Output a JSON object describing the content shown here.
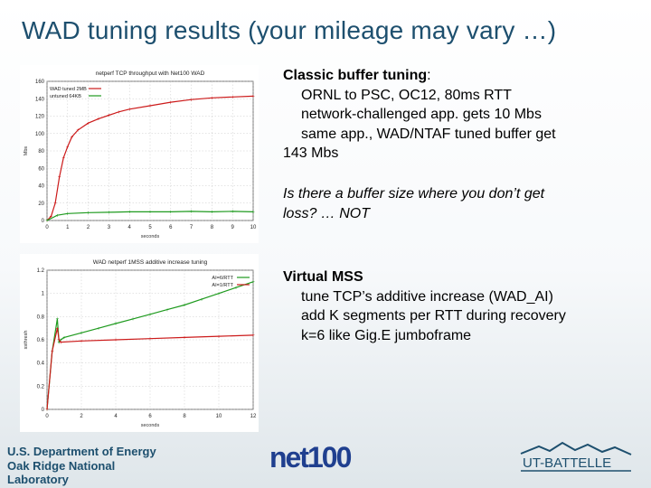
{
  "title": "WAD tuning results  (your mileage may vary …)",
  "colors": {
    "title": "#1d4f6e",
    "red_series": "#cc1a1a",
    "green_series": "#1e9a1e"
  },
  "text": {
    "block1": {
      "heading": "Classic buffer tuning",
      "heading_suffix": ":",
      "lines": [
        "ORNL to PSC,  OC12, 80ms RTT",
        "network-challenged app. gets 10 Mbs",
        "same app., WAD/NTAF tuned buffer get"
      ],
      "tail": "143 Mbs"
    },
    "block2": {
      "line1": " Is there a buffer size where you don’t get",
      "line2": "loss?  … NOT"
    },
    "block3": {
      "heading": "Virtual MSS",
      "lines": [
        "tune TCP’s additive increase  (WAD_AI)",
        "add K segments per RTT during recovery",
        "k=6 like Gig.E jumboframe"
      ]
    }
  },
  "footer": {
    "doe_lines": [
      "U.S. Department of Energy",
      "Oak Ridge National",
      "Laboratory"
    ],
    "net100_logo": "net100",
    "ut_logo": "UT-BATTELLE"
  },
  "chart_data": [
    {
      "type": "line",
      "title": "netperf TCP throughput with Net100 WAD",
      "xlabel": "seconds",
      "ylabel": "Mbs",
      "xlim": [
        0,
        10
      ],
      "ylim": [
        0,
        160
      ],
      "xticks": [
        0,
        1,
        2,
        3,
        4,
        5,
        6,
        7,
        8,
        9,
        10
      ],
      "yticks": [
        0,
        20,
        40,
        60,
        80,
        100,
        120,
        140,
        160
      ],
      "legend_position": "top-left",
      "series": [
        {
          "name": "WAD tuned 2MB",
          "color": "#cc1a1a",
          "x": [
            0,
            0.2,
            0.4,
            0.6,
            0.8,
            1.0,
            1.2,
            1.5,
            2,
            2.5,
            3,
            3.5,
            4,
            5,
            6,
            7,
            8,
            9,
            10
          ],
          "y": [
            0,
            5,
            20,
            50,
            72,
            85,
            96,
            104,
            112,
            117,
            121,
            125,
            128,
            132,
            136,
            139,
            141,
            142,
            143
          ]
        },
        {
          "name": "untuned 64KB",
          "color": "#1e9a1e",
          "x": [
            0,
            0.5,
            1,
            2,
            3,
            4,
            5,
            6,
            7,
            8,
            9,
            10
          ],
          "y": [
            0,
            6,
            8,
            9,
            9.5,
            10,
            10,
            10,
            10.5,
            10,
            10.5,
            10
          ]
        }
      ]
    },
    {
      "type": "line",
      "title": "WAD netperf 1MSS    additive increase tuning",
      "xlabel": "seconds",
      "ylabel": "ssthresh",
      "xlim": [
        0,
        12
      ],
      "ylim": [
        0,
        1.2
      ],
      "xticks": [
        0,
        2,
        4,
        6,
        8,
        10,
        12
      ],
      "yticks": [
        0,
        0.2,
        0.4,
        0.6,
        0.8,
        1.0,
        1.2
      ],
      "legend_position": "top-right",
      "series": [
        {
          "name": "AI=6/RTT",
          "color": "#1e9a1e",
          "x": [
            0,
            0.3,
            0.6,
            0.7,
            0.8,
            1,
            2,
            3,
            4,
            5,
            6,
            7,
            8,
            9,
            10,
            11,
            12
          ],
          "y": [
            0,
            0.5,
            0.78,
            0.58,
            0.6,
            0.62,
            0.66,
            0.7,
            0.74,
            0.78,
            0.82,
            0.86,
            0.9,
            0.95,
            1.0,
            1.05,
            1.1
          ]
        },
        {
          "name": "AI=1/RTT",
          "color": "#cc1a1a",
          "x": [
            0,
            0.3,
            0.6,
            0.7,
            0.8,
            2,
            4,
            6,
            8,
            10,
            12
          ],
          "y": [
            0,
            0.5,
            0.7,
            0.6,
            0.58,
            0.59,
            0.6,
            0.61,
            0.62,
            0.63,
            0.64
          ]
        }
      ]
    }
  ]
}
